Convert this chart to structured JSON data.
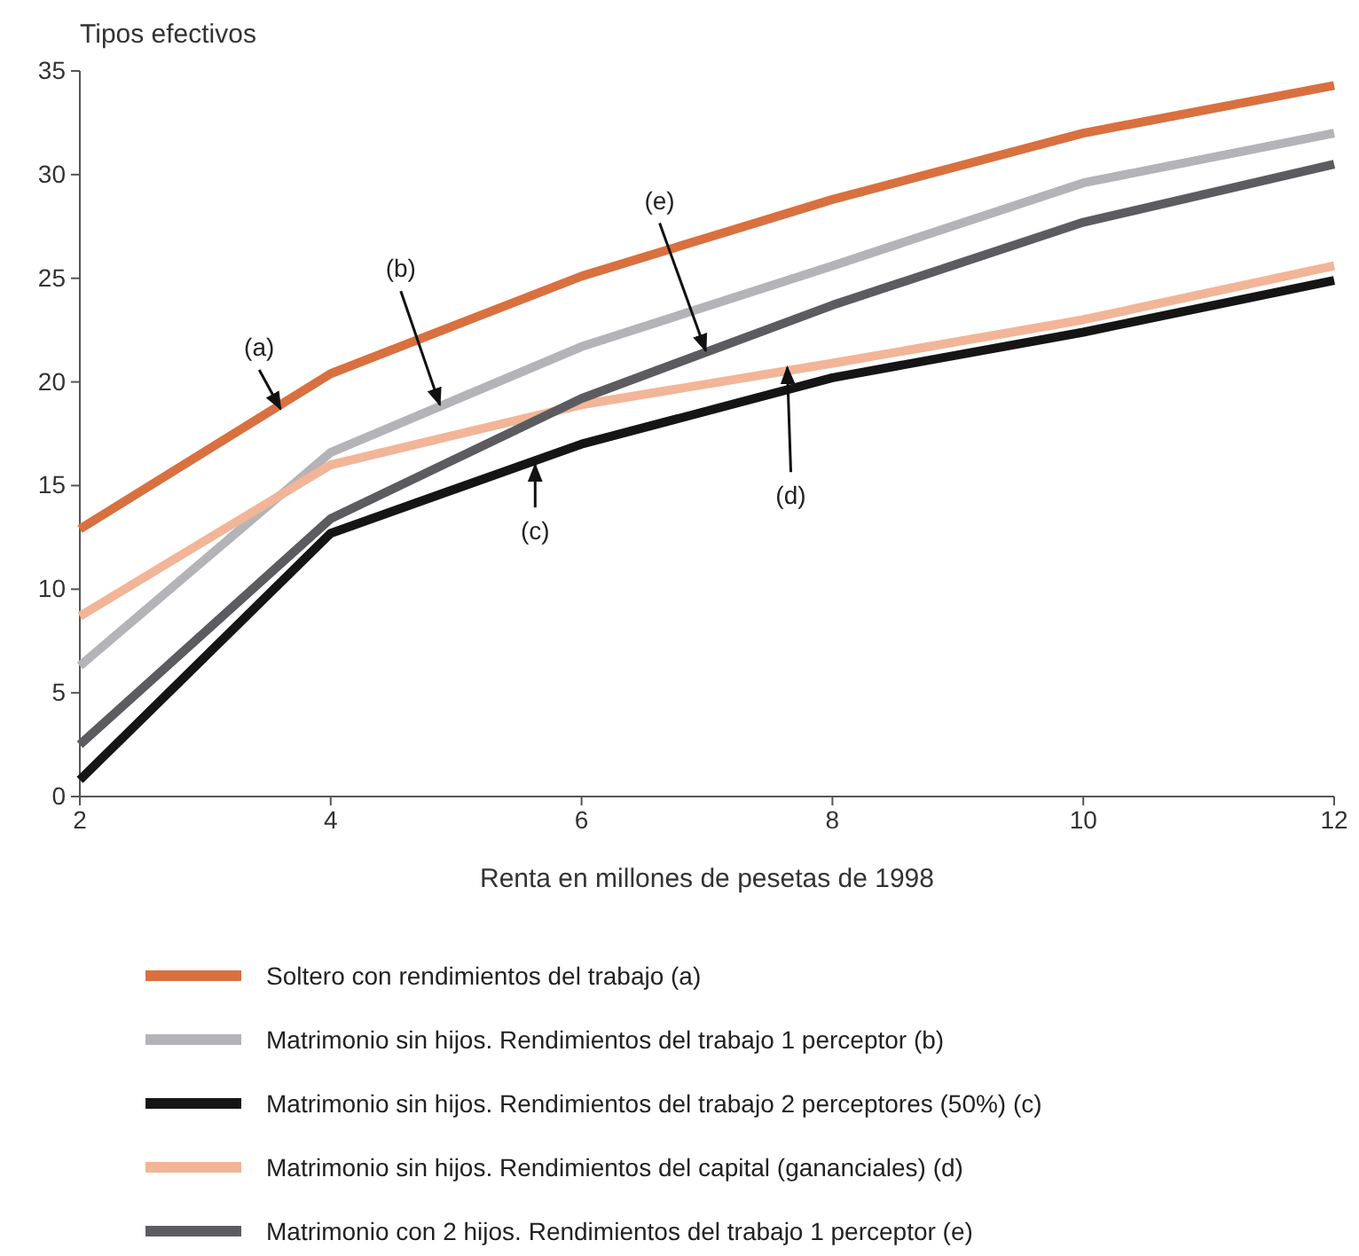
{
  "chart_data": {
    "type": "line",
    "ylabel": "Tipos efectivos",
    "xlabel": "Renta en millones de pesetas de 1998",
    "x": [
      2,
      4,
      6,
      8,
      10,
      12
    ],
    "xlim": [
      2,
      12
    ],
    "xticks": [
      2,
      4,
      6,
      8,
      10,
      12
    ],
    "ylim": [
      0,
      35
    ],
    "yticks": [
      0,
      5,
      10,
      15,
      20,
      25,
      30,
      35
    ],
    "series": [
      {
        "name": "Soltero con rendimientos del trabajo (a)",
        "color": "#d9703f",
        "values": [
          12.9,
          20.4,
          25.1,
          28.8,
          32.0,
          34.3
        ]
      },
      {
        "name": "Matrimonio sin hijos. Rendimientos del trabajo 1 perceptor (b)",
        "color": "#b4b4b8",
        "values": [
          6.3,
          16.6,
          21.7,
          25.6,
          29.6,
          32.0
        ]
      },
      {
        "name": "Matrimonio sin hijos. Rendimientos del trabajo 2 perceptores (50%) (c)",
        "color": "#151515",
        "values": [
          0.8,
          12.7,
          17.0,
          20.2,
          22.4,
          24.9
        ]
      },
      {
        "name": "Matrimonio sin hijos. Rendimientos del capital (gananciales) (d)",
        "color": "#f2b597",
        "values": [
          8.7,
          16.0,
          18.9,
          20.9,
          23.0,
          25.6
        ]
      },
      {
        "name": "Matrimonio con 2 hijos. Rendimientos del trabajo 1 perceptor (e)",
        "color": "#5c5c60",
        "values": [
          2.5,
          13.4,
          19.2,
          23.7,
          27.7,
          30.5
        ]
      }
    ],
    "annotations": [
      {
        "text": "(a)",
        "x": 3.6,
        "y": 18.7
      },
      {
        "text": "(b)",
        "x": 4.87,
        "y": 18.9
      },
      {
        "text": "(c)",
        "x": 5.63,
        "y": 16.0
      },
      {
        "text": "(d)",
        "x": 7.64,
        "y": 20.7
      },
      {
        "text": "(e)",
        "x": 6.99,
        "y": 21.5
      }
    ],
    "grid": false,
    "legend": "bottom",
    "marker": "none",
    "line_style": "solid"
  }
}
